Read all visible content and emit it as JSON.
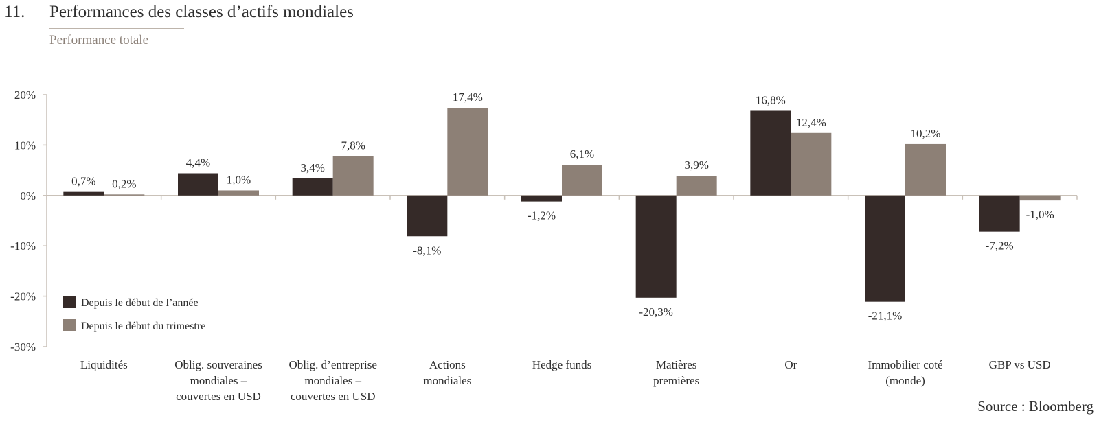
{
  "header": {
    "number": "11.",
    "title": "Performances des classes d’actifs mondiales",
    "subtitle": "Performance totale"
  },
  "source": "Source : Bloomberg",
  "chart_data": {
    "type": "bar",
    "title": "Performances des classes d’actifs mondiales",
    "subtitle": "Performance totale",
    "categories": [
      [
        "Liquidités"
      ],
      [
        "Oblig. souveraines",
        "mondiales –",
        "couvertes en USD"
      ],
      [
        "Oblig. d’entreprise",
        "mondiales –",
        "couvertes en USD"
      ],
      [
        "Actions",
        "mondiales"
      ],
      [
        "Hedge funds"
      ],
      [
        "Matières",
        "premières"
      ],
      [
        "Or"
      ],
      [
        "Immobilier coté",
        "(monde)"
      ],
      [
        "GBP vs USD"
      ]
    ],
    "series": [
      {
        "name": "Depuis le début de l’année",
        "color": "#352a28",
        "values": [
          0.7,
          4.4,
          3.4,
          -8.1,
          -1.2,
          -20.3,
          16.8,
          -21.1,
          -7.2
        ],
        "labels": [
          "0,7%",
          "4,4%",
          "3,4%",
          "-8,1%",
          "-1,2%",
          "-20,3%",
          "16,8%",
          "-21,1%",
          "-7,2%"
        ]
      },
      {
        "name": "Depuis le début du trimestre",
        "color": "#8d8076",
        "values": [
          0.2,
          1.0,
          7.8,
          17.4,
          6.1,
          3.9,
          12.4,
          10.2,
          -1.0
        ],
        "labels": [
          "0,2%",
          "1,0%",
          "7,8%",
          "17,4%",
          "6,1%",
          "3,9%",
          "12,4%",
          "10,2%",
          "-1,0%"
        ]
      }
    ],
    "ylim": [
      -30,
      20
    ],
    "yticks": [
      20,
      10,
      0,
      -10,
      -20,
      -30
    ],
    "ytick_labels": [
      "20%",
      "10%",
      "0%",
      "-10%",
      "-20%",
      "-30%"
    ],
    "legend_position": "bottom-left",
    "grid": false
  }
}
